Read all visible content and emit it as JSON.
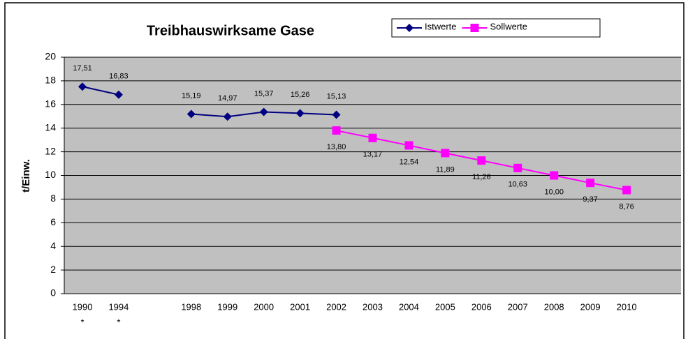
{
  "chart_data": {
    "type": "line",
    "title": "Treibhauswirksame Gase",
    "ylabel": "t/Einw.",
    "categories": [
      "1990",
      "1994",
      null,
      "1998",
      "1999",
      "2000",
      "2001",
      "2002",
      "2003",
      "2004",
      "2005",
      "2006",
      "2007",
      "2008",
      "2009",
      "2010",
      null
    ],
    "category_notes": [
      "*",
      "*",
      null,
      null,
      null,
      null,
      null,
      null,
      null,
      null,
      null,
      null,
      null,
      null,
      null,
      null,
      null
    ],
    "series": [
      {
        "name": "Istwerte",
        "color": "#000080",
        "marker": "diamond",
        "values": [
          17.51,
          16.83,
          null,
          15.19,
          14.97,
          15.37,
          15.26,
          15.13,
          null,
          null,
          null,
          null,
          null,
          null,
          null,
          null,
          null
        ],
        "value_labels": [
          "17,51",
          "16,83",
          null,
          "15,19",
          "14,97",
          "15,37",
          "15,26",
          "15,13",
          null,
          null,
          null,
          null,
          null,
          null,
          null,
          null,
          null
        ]
      },
      {
        "name": "Sollwerte",
        "color": "#ff00ff",
        "marker": "square",
        "values": [
          null,
          null,
          null,
          null,
          null,
          null,
          null,
          13.8,
          13.17,
          12.54,
          11.89,
          11.26,
          10.63,
          10.0,
          9.37,
          8.76,
          null
        ],
        "value_labels": [
          null,
          null,
          null,
          null,
          null,
          null,
          null,
          "13,80",
          "13,17",
          "12,54",
          "11,89",
          "11,26",
          "10,63",
          "10,00",
          "9,37",
          "8,76",
          null
        ]
      }
    ],
    "ylim": [
      0,
      20
    ],
    "yticks": [
      0,
      2,
      4,
      6,
      8,
      10,
      12,
      14,
      16,
      18,
      20
    ],
    "grid": true,
    "legend": "top",
    "plot_background": "#c0c0c0"
  }
}
